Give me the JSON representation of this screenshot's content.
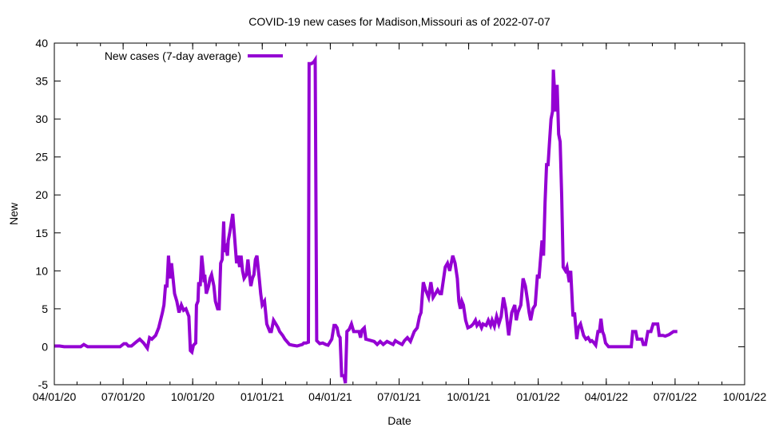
{
  "chart_data": {
    "type": "line",
    "title": "COVID-19 new cases for Madison,Missouri as of 2022-07-07",
    "xlabel": "Date",
    "ylabel": "New",
    "x_origin_date": "2020-04-01",
    "x_units": "days since 2020-04-01",
    "xlim": [
      0,
      913
    ],
    "ylim": [
      -5,
      40
    ],
    "yticks": [
      -5,
      0,
      5,
      10,
      15,
      20,
      25,
      30,
      35,
      40
    ],
    "xticks": [
      {
        "day": 0,
        "label": "04/01/20"
      },
      {
        "day": 91,
        "label": "07/01/20"
      },
      {
        "day": 183,
        "label": "10/01/20"
      },
      {
        "day": 275,
        "label": "01/01/21"
      },
      {
        "day": 365,
        "label": "04/01/21"
      },
      {
        "day": 456,
        "label": "07/01/21"
      },
      {
        "day": 548,
        "label": "10/01/21"
      },
      {
        "day": 640,
        "label": "01/01/22"
      },
      {
        "day": 730,
        "label": "04/01/22"
      },
      {
        "day": 821,
        "label": "07/01/22"
      },
      {
        "day": 913,
        "label": "10/01/22"
      }
    ],
    "grid": false,
    "legend_position": "top-left",
    "series": [
      {
        "name": "New cases (7-day average)",
        "color": "#9400d3",
        "points": [
          [
            0,
            0.1
          ],
          [
            7,
            0.1
          ],
          [
            13,
            0
          ],
          [
            35,
            0
          ],
          [
            39,
            0.3
          ],
          [
            44,
            0
          ],
          [
            87,
            0
          ],
          [
            92,
            0.4
          ],
          [
            95,
            0.4
          ],
          [
            98,
            0.1
          ],
          [
            102,
            0.1
          ],
          [
            108,
            0.6
          ],
          [
            113,
            1.0
          ],
          [
            118,
            0.5
          ],
          [
            123,
            -0.2
          ],
          [
            126,
            1.2
          ],
          [
            129,
            1.0
          ],
          [
            134,
            1.5
          ],
          [
            138,
            2.5
          ],
          [
            143,
            4.5
          ],
          [
            145,
            5.5
          ],
          [
            147,
            8
          ],
          [
            149,
            8
          ],
          [
            151,
            12
          ],
          [
            153,
            9
          ],
          [
            155,
            11
          ],
          [
            159,
            7
          ],
          [
            162,
            6
          ],
          [
            165,
            4.5
          ],
          [
            168,
            5.5
          ],
          [
            171,
            4.8
          ],
          [
            174,
            5
          ],
          [
            178,
            4
          ],
          [
            180,
            -0.5
          ],
          [
            182,
            -0.7
          ],
          [
            184,
            0.2
          ],
          [
            187,
            0.5
          ],
          [
            188,
            5.5
          ],
          [
            190,
            6
          ],
          [
            191,
            8.5
          ],
          [
            193,
            8
          ],
          [
            195,
            12
          ],
          [
            197,
            10
          ],
          [
            198,
            8.5
          ],
          [
            199,
            9.5
          ],
          [
            201,
            7
          ],
          [
            204,
            8
          ],
          [
            206,
            9
          ],
          [
            208,
            9.5
          ],
          [
            211,
            8
          ],
          [
            213,
            6
          ],
          [
            216,
            5
          ],
          [
            218,
            5
          ],
          [
            220,
            11
          ],
          [
            222,
            11.5
          ],
          [
            224,
            16.5
          ],
          [
            225,
            12.5
          ],
          [
            227,
            13
          ],
          [
            229,
            12
          ],
          [
            230,
            14
          ],
          [
            232,
            15
          ],
          [
            236,
            17.5
          ],
          [
            238,
            15
          ],
          [
            241,
            11
          ],
          [
            243,
            12
          ],
          [
            245,
            10.5
          ],
          [
            247,
            12
          ],
          [
            249,
            10
          ],
          [
            251,
            9
          ],
          [
            254,
            9.5
          ],
          [
            256,
            11.5
          ],
          [
            258,
            9.5
          ],
          [
            260,
            8
          ],
          [
            262,
            9
          ],
          [
            264,
            9.5
          ],
          [
            266,
            11.5
          ],
          [
            268,
            12
          ],
          [
            271,
            9
          ],
          [
            273,
            7
          ],
          [
            275,
            5.5
          ],
          [
            278,
            6
          ],
          [
            281,
            3
          ],
          [
            285,
            2
          ],
          [
            287,
            2
          ],
          [
            290,
            3.5
          ],
          [
            293,
            3
          ],
          [
            296,
            2.5
          ],
          [
            298,
            2
          ],
          [
            302,
            1.5
          ],
          [
            305,
            1
          ],
          [
            311,
            0.3
          ],
          [
            315,
            0.2
          ],
          [
            321,
            0.1
          ],
          [
            328,
            0.3
          ],
          [
            330,
            0.5
          ],
          [
            333,
            0.5
          ],
          [
            336,
            0.6
          ],
          [
            337,
            37.3
          ],
          [
            340,
            37.3
          ],
          [
            343,
            37.5
          ],
          [
            345,
            37.8
          ],
          [
            347,
            0.8
          ],
          [
            351,
            0.4
          ],
          [
            355,
            0.5
          ],
          [
            359,
            0.3
          ],
          [
            362,
            0.2
          ],
          [
            367,
            1.0
          ],
          [
            370,
            2.8
          ],
          [
            372,
            2.8
          ],
          [
            374,
            2.5
          ],
          [
            376,
            1.5
          ],
          [
            378,
            1.2
          ],
          [
            380,
            -3.8
          ],
          [
            383,
            -3.8
          ],
          [
            385,
            -4.8
          ],
          [
            387,
            2
          ],
          [
            390,
            2.3
          ],
          [
            393,
            3
          ],
          [
            396,
            2
          ],
          [
            399,
            2
          ],
          [
            403,
            2
          ],
          [
            405,
            1.2
          ],
          [
            407,
            2.2
          ],
          [
            410,
            2.5
          ],
          [
            412,
            1.0
          ],
          [
            416,
            0.9
          ],
          [
            423,
            0.7
          ],
          [
            427,
            0.3
          ],
          [
            431,
            0.7
          ],
          [
            435,
            0.3
          ],
          [
            440,
            0.7
          ],
          [
            444,
            0.5
          ],
          [
            448,
            0.3
          ],
          [
            451,
            0.8
          ],
          [
            454,
            0.6
          ],
          [
            460,
            0.3
          ],
          [
            463,
            0.8
          ],
          [
            467,
            1.2
          ],
          [
            471,
            0.7
          ],
          [
            476,
            2
          ],
          [
            480,
            2.5
          ],
          [
            483,
            4
          ],
          [
            485,
            4.5
          ],
          [
            488,
            8.5
          ],
          [
            491,
            7.5
          ],
          [
            495,
            6.5
          ],
          [
            498,
            8.5
          ],
          [
            501,
            6.5
          ],
          [
            504,
            7
          ],
          [
            507,
            7.5
          ],
          [
            510,
            7
          ],
          [
            512,
            7
          ],
          [
            517,
            10.5
          ],
          [
            520,
            11
          ],
          [
            523,
            10
          ],
          [
            525,
            11
          ],
          [
            527,
            12
          ],
          [
            530,
            11
          ],
          [
            533,
            9
          ],
          [
            535,
            6
          ],
          [
            537,
            5
          ],
          [
            539,
            6
          ],
          [
            541,
            5.5
          ],
          [
            544,
            3.5
          ],
          [
            547,
            2.5
          ],
          [
            551,
            2.7
          ],
          [
            554,
            3
          ],
          [
            557,
            3.5
          ],
          [
            559,
            2.8
          ],
          [
            562,
            3.2
          ],
          [
            565,
            2.5
          ],
          [
            567,
            3
          ],
          [
            571,
            2.8
          ],
          [
            574,
            3.5
          ],
          [
            577,
            2.8
          ],
          [
            579,
            3.5
          ],
          [
            582,
            2.7
          ],
          [
            585,
            4
          ],
          [
            588,
            3
          ],
          [
            591,
            4
          ],
          [
            594,
            6.5
          ],
          [
            597,
            5
          ],
          [
            601,
            1.5
          ],
          [
            603,
            3
          ],
          [
            605,
            4.5
          ],
          [
            609,
            5.5
          ],
          [
            611,
            3.5
          ],
          [
            613,
            4.5
          ],
          [
            617,
            5.5
          ],
          [
            620,
            9
          ],
          [
            623,
            8
          ],
          [
            626,
            6
          ],
          [
            628,
            4.5
          ],
          [
            630,
            3.5
          ],
          [
            633,
            5
          ],
          [
            636,
            5.5
          ],
          [
            639,
            9.5
          ],
          [
            641,
            9
          ],
          [
            645,
            14
          ],
          [
            647,
            12
          ],
          [
            649,
            19
          ],
          [
            651,
            24
          ],
          [
            653,
            24
          ],
          [
            655,
            27
          ],
          [
            657,
            30
          ],
          [
            659,
            31
          ],
          [
            660,
            36.5
          ],
          [
            663,
            31
          ],
          [
            665,
            34.5
          ],
          [
            667,
            28
          ],
          [
            669,
            27
          ],
          [
            671,
            20
          ],
          [
            673,
            10.5
          ],
          [
            676,
            10
          ],
          [
            678,
            10.5
          ],
          [
            681,
            8.5
          ],
          [
            683,
            10
          ],
          [
            686,
            4
          ],
          [
            688,
            4.5
          ],
          [
            691,
            1
          ],
          [
            693,
            2.5
          ],
          [
            696,
            3
          ],
          [
            700,
            1.5
          ],
          [
            703,
            1
          ],
          [
            706,
            1.2
          ],
          [
            709,
            0.7
          ],
          [
            711,
            0.8
          ],
          [
            713,
            0.6
          ],
          [
            716,
            0.2
          ],
          [
            719,
            2
          ],
          [
            721,
            2
          ],
          [
            723,
            3.7
          ],
          [
            725,
            2
          ],
          [
            727,
            1.5
          ],
          [
            729,
            0.5
          ],
          [
            733,
            0
          ],
          [
            763,
            0
          ],
          [
            765,
            2
          ],
          [
            769,
            2
          ],
          [
            771,
            1
          ],
          [
            777,
            1
          ],
          [
            779,
            0.3
          ],
          [
            782,
            0.3
          ],
          [
            785,
            2
          ],
          [
            789,
            2
          ],
          [
            792,
            3
          ],
          [
            798,
            3
          ],
          [
            800,
            1.5
          ],
          [
            805,
            1.5
          ],
          [
            808,
            1.4
          ],
          [
            813,
            1.6
          ],
          [
            816,
            1.8
          ],
          [
            819,
            2
          ],
          [
            824,
            2
          ]
        ]
      }
    ]
  }
}
